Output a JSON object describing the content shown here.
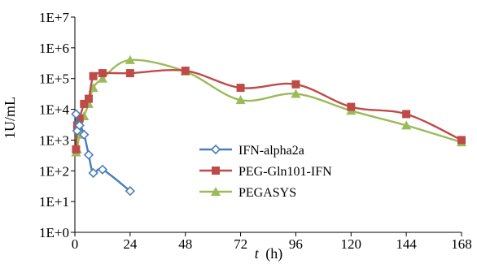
{
  "chart_data": {
    "type": "line",
    "xlabel": "t",
    "xlabel_unit": "(h)",
    "ylabel": "1U/mL",
    "xlim": [
      0,
      168
    ],
    "ylim": [
      1,
      10000000
    ],
    "y_scale": "log",
    "x_ticks": [
      0,
      24,
      48,
      72,
      96,
      120,
      144,
      168
    ],
    "x_tick_labels": [
      "0",
      "24",
      "48",
      "72",
      "96",
      "120",
      "144",
      "168"
    ],
    "y_ticks": [
      1,
      10,
      100,
      1000,
      10000,
      100000,
      1000000,
      10000000
    ],
    "y_tick_labels": [
      "1E+0",
      "1E+1",
      "1E+2",
      "1E+3",
      "1E+4",
      "1E+5",
      "1E+6",
      "1E+7"
    ],
    "grid": false,
    "legend_position": "center-right",
    "series": [
      {
        "name": "IFN-alpha2a",
        "color": "#4a7ebb",
        "marker": "diamond-open",
        "x": [
          0.5,
          1,
          2,
          4,
          6,
          8,
          12,
          24
        ],
        "y": [
          7000,
          2000,
          3000,
          1500,
          330,
          85,
          110,
          22
        ]
      },
      {
        "name": "PEG-Gln101-IFN",
        "color": "#be4b48",
        "marker": "square",
        "x": [
          0.5,
          1,
          2,
          4,
          6,
          8,
          12,
          24,
          48,
          72,
          96,
          120,
          144,
          168
        ],
        "y": [
          500,
          3000,
          5000,
          15000,
          22000,
          120000,
          150000,
          150000,
          180000,
          50000,
          65000,
          12000,
          7000,
          1000
        ]
      },
      {
        "name": "PEGASYS",
        "color": "#9bbb59",
        "marker": "triangle",
        "x": [
          0.5,
          1,
          2,
          4,
          6,
          8,
          12,
          24,
          48,
          72,
          96,
          120,
          144,
          168
        ],
        "y": [
          400,
          500,
          1500,
          6000,
          15000,
          50000,
          100000,
          400000,
          170000,
          20000,
          32000,
          9000,
          3000,
          850
        ]
      }
    ]
  }
}
